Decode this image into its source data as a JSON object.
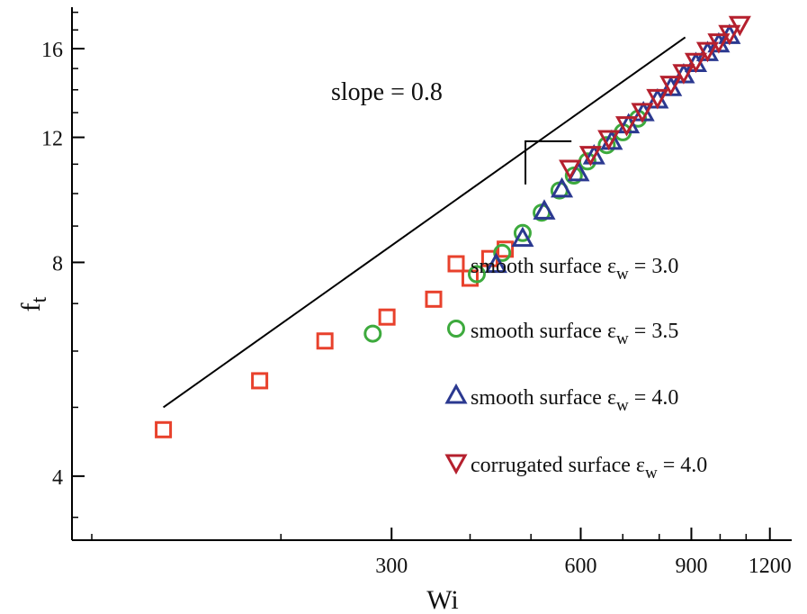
{
  "chart_data": {
    "type": "scatter",
    "xlabel": "Wi",
    "ylabel_main": "f",
    "ylabel_sub": "t",
    "x_scale": "log",
    "y_scale": "log",
    "xlim": [
      93,
      1300
    ],
    "ylim": [
      3.25,
      18.3
    ],
    "x_ticks": [
      300,
      600,
      900,
      1200
    ],
    "x_tick_labels": [
      "300",
      "600",
      "900",
      "1200"
    ],
    "x_minor_ticks": [
      100,
      200,
      400,
      500,
      700,
      800,
      1000,
      1100
    ],
    "y_ticks": [
      4,
      8,
      12,
      16
    ],
    "y_tick_labels": [
      "4",
      "8",
      "12",
      "16"
    ],
    "y_minor_ticks": [
      3.5,
      5,
      6,
      7,
      9,
      10,
      11,
      13,
      14,
      15,
      17,
      18
    ],
    "grid": false,
    "legend_position": "lower-right",
    "annotation": "slope = 0.8",
    "reference_line": {
      "slope": 0.8,
      "x": [
        130,
        880
      ],
      "y": [
        5.0,
        16.6
      ]
    },
    "slope_triangle": {
      "x": [
        490,
        580
      ],
      "y": [
        10.3,
        11.85
      ]
    },
    "series": [
      {
        "name": "smooth surface ε",
        "name_sub": "w",
        "name_suffix": " = 3.0",
        "marker": "square",
        "color": "#e8412c",
        "x": [
          130,
          185,
          235,
          295,
          350,
          400,
          430,
          455
        ],
        "y": [
          4.65,
          5.45,
          6.2,
          6.7,
          7.1,
          7.6,
          8.1,
          8.35
        ]
      },
      {
        "name": "smooth surface ε",
        "name_sub": "w",
        "name_suffix": " = 3.5",
        "marker": "circle",
        "color": "#3daa3d",
        "x": [
          280,
          410,
          450,
          485,
          520,
          555,
          585,
          615,
          660,
          700,
          740
        ],
        "y": [
          6.35,
          7.7,
          8.25,
          8.8,
          9.4,
          10.1,
          10.6,
          11.1,
          11.7,
          12.2,
          12.75
        ]
      },
      {
        "name": "smooth surface ε",
        "name_sub": "w",
        "name_suffix": " = 4.0",
        "marker": "triangle-up",
        "color": "#2b3990",
        "x": [
          440,
          485,
          525,
          560,
          595,
          630,
          672,
          715,
          755,
          795,
          835,
          875,
          915,
          955,
          995,
          1035
        ],
        "y": [
          7.95,
          8.65,
          9.45,
          10.15,
          10.7,
          11.3,
          11.85,
          12.5,
          13.0,
          13.55,
          14.1,
          14.7,
          15.25,
          15.8,
          16.25,
          16.7
        ]
      },
      {
        "name": "corrugated surface ε",
        "name_sub": "w",
        "name_suffix": " = 4.0",
        "marker": "triangle-down",
        "color": "#b5202e",
        "x": [
          577,
          622,
          665,
          710,
          752,
          795,
          835,
          875,
          915,
          955,
          995,
          1035,
          1075
        ],
        "y": [
          10.85,
          11.35,
          11.95,
          12.5,
          13.05,
          13.65,
          14.25,
          14.8,
          15.35,
          15.9,
          16.35,
          16.8,
          17.3
        ]
      }
    ]
  }
}
